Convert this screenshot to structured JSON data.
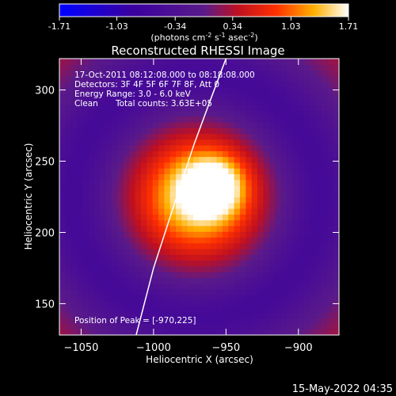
{
  "chart_data": {
    "type": "heatmap",
    "title": "Reconstructed RHESSI Image",
    "xlabel": "Heliocentric X (arcsec)",
    "ylabel": "Heliocentric Y (arcsec)",
    "xlim": [
      -1065,
      -872
    ],
    "ylim": [
      128,
      322
    ],
    "xticks": [
      -1050,
      -1000,
      -950,
      -900
    ],
    "yticks": [
      150,
      200,
      250,
      300
    ],
    "colorbar": {
      "ticks": [
        "-1.71",
        "-1.03",
        "-0.34",
        "0.34",
        "1.03",
        "1.71"
      ],
      "range": [
        -1.71,
        1.71
      ],
      "unit_text": "(photons cm",
      "unit_sup1": "-2",
      "unit_mid": " s",
      "unit_sup2": "-1",
      "unit_mid2": " asec",
      "unit_sup3": "-2",
      "unit_close": ")"
    },
    "annotations": {
      "time": "17-Oct-2011 08:12:08.000 to 08:18:08.000",
      "detectors": "Detectors: 3F 4F 5F 6F 7F 8F, Att 0",
      "energy": "Energy Range: 3.0 - 6.0 keV",
      "clean": "Clean",
      "counts": "Total counts: 3.63E+05",
      "peak": "Position of Peak = [-970,225]"
    },
    "peak": [
      -970,
      225
    ],
    "source_width_arcsec": 55,
    "limb": [
      [
        -950,
        322
      ],
      [
        -960,
        295
      ],
      [
        -972,
        262
      ],
      [
        -985,
        222
      ],
      [
        -1000,
        175
      ],
      [
        -1012,
        128
      ]
    ]
  },
  "footer": {
    "date": "15-May-2022 04:35"
  }
}
